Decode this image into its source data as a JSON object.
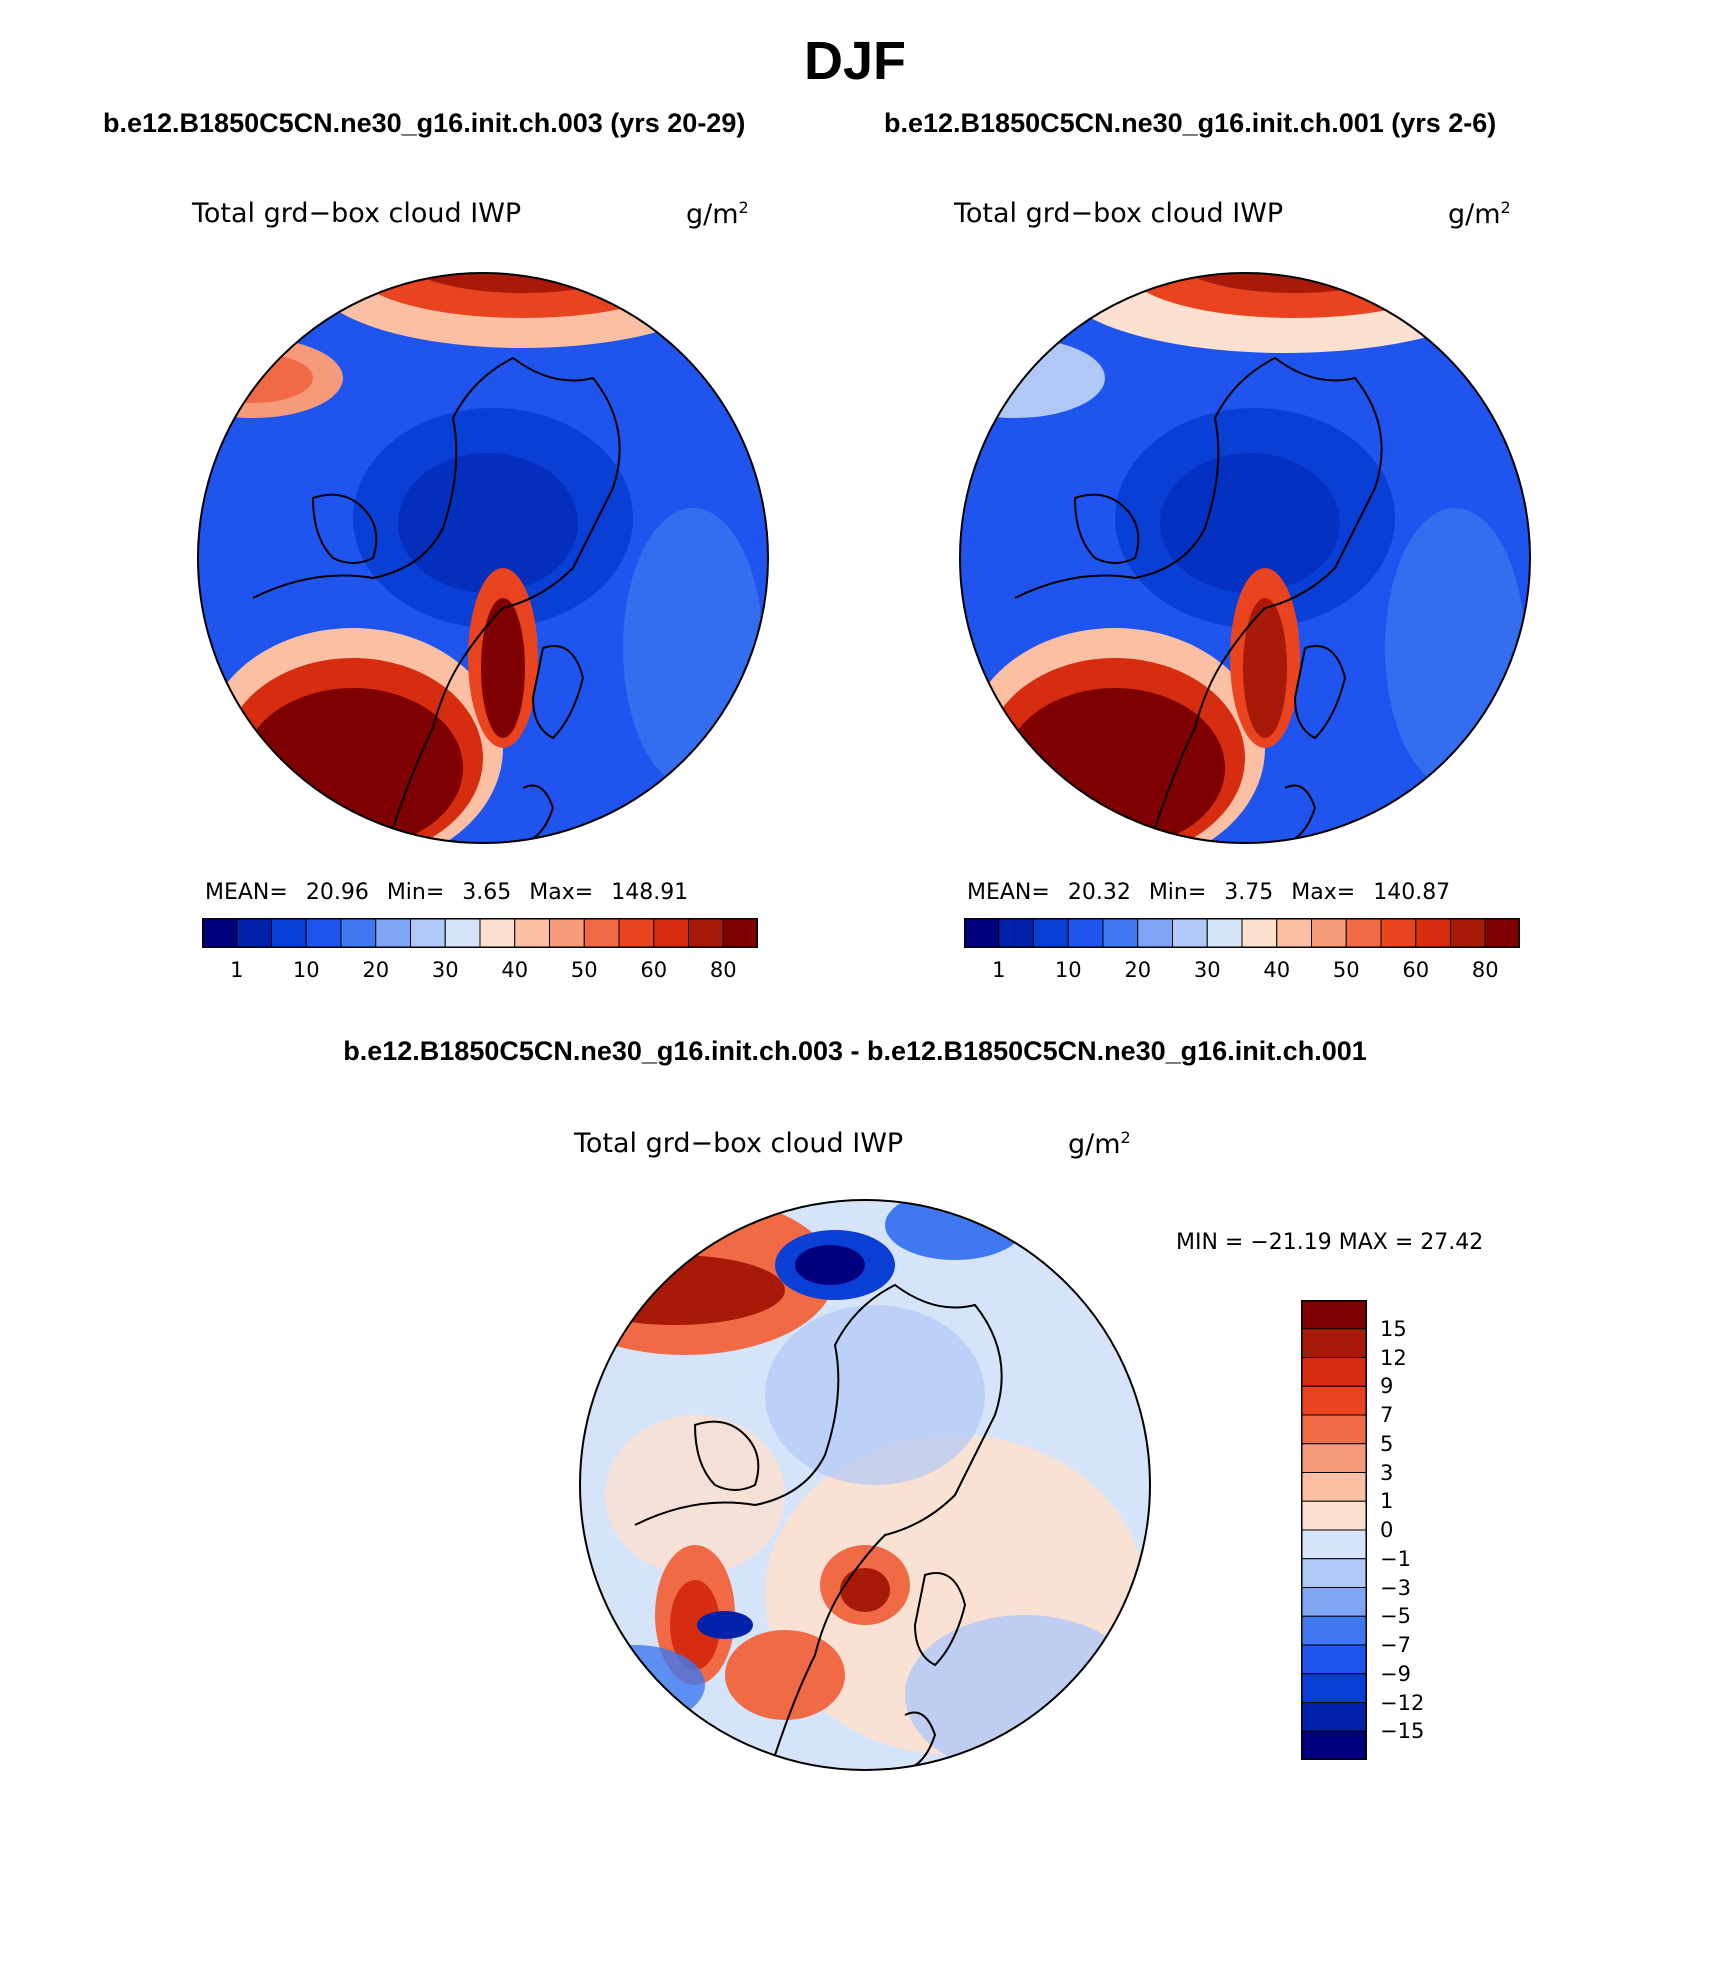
{
  "figure_title": "DJF",
  "left_panel": {
    "case": "b.e12.B1850C5CN.ne30_g16.init.ch.003 (yrs 20-29)",
    "variable": "Total grd−box cloud IWP",
    "units_base": "g/m",
    "units_exp": "2",
    "mean_label": "MEAN=",
    "mean": "20.96",
    "min_label": "Min=",
    "min": "3.65",
    "max_label": "Max=",
    "max": "148.91",
    "colorbar_ticks": [
      "1",
      "10",
      "20",
      "30",
      "40",
      "50",
      "60",
      "80"
    ]
  },
  "right_panel": {
    "case": "b.e12.B1850C5CN.ne30_g16.init.ch.001 (yrs 2-6)",
    "variable": "Total grd−box cloud IWP",
    "units_base": "g/m",
    "units_exp": "2",
    "mean_label": "MEAN=",
    "mean": "20.32",
    "min_label": "Min=",
    "min": "3.75",
    "max_label": "Max=",
    "max": "140.87",
    "colorbar_ticks": [
      "1",
      "10",
      "20",
      "30",
      "40",
      "50",
      "60",
      "80"
    ]
  },
  "diff_panel": {
    "title": "b.e12.B1850C5CN.ne30_g16.init.ch.003 - b.e12.B1850C5CN.ne30_g16.init.ch.001",
    "variable": "Total grd−box cloud IWP",
    "units_base": "g/m",
    "units_exp": "2",
    "minmax": "MIN = −21.19  MAX =   27.42",
    "colorbar_ticks": [
      "15",
      "12",
      "9",
      "7",
      "5",
      "3",
      "1",
      "0",
      "−1",
      "−3",
      "−5",
      "−7",
      "−9",
      "−12",
      "−15"
    ]
  },
  "colors": {
    "abs_scale": [
      "#00007f",
      "#0022aa",
      "#0a3fd6",
      "#1f55ee",
      "#3f78f0",
      "#7ea6f4",
      "#b0c8f6",
      "#d6e4fa",
      "#fde0cf",
      "#fbc0a4",
      "#f59b7a",
      "#f06a45",
      "#ea431f",
      "#d62d10",
      "#a81a08",
      "#7f0000"
    ],
    "diff_scale": [
      "#7f0000",
      "#a81a08",
      "#d62d10",
      "#ea431f",
      "#f06a45",
      "#f59b7a",
      "#fbc0a4",
      "#fde0cf",
      "#d6e4fa",
      "#b0c8f6",
      "#7ea6f4",
      "#3f78f0",
      "#1f55ee",
      "#0a3fd6",
      "#0022aa",
      "#00007f"
    ]
  }
}
